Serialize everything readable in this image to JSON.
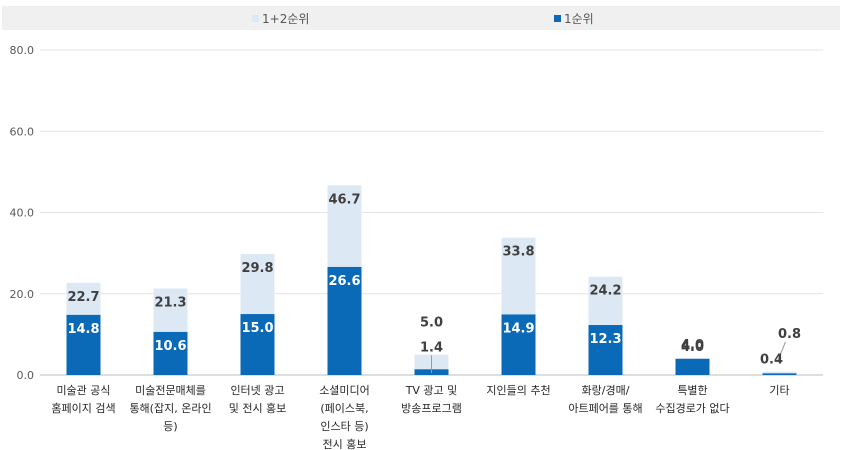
{
  "chart_data": {
    "type": "bar",
    "categories": [
      [
        "미술관 공식",
        "홈페이지 검색"
      ],
      [
        "미술전문매체를",
        "통해(잡지, 온라인",
        "등)"
      ],
      [
        "인터넷 광고",
        "및 전시 홍보"
      ],
      [
        "소셜미디어",
        "(페이스북,",
        "인스타 등)",
        "전시 홍보"
      ],
      [
        "TV 광고 및",
        "방송프로그램"
      ],
      [
        "지인들의 추천"
      ],
      [
        "화랑/경매/",
        "아트페어를 통해"
      ],
      [
        "특별한",
        "수집경로가 없다"
      ],
      [
        "기타"
      ]
    ],
    "series": [
      {
        "name": "1+2순위",
        "values": [
          22.7,
          21.3,
          29.8,
          46.7,
          5.0,
          33.8,
          24.2,
          4.0,
          0.8
        ],
        "color": "#dde8f5"
      },
      {
        "name": "1순위",
        "values": [
          14.8,
          10.6,
          15.0,
          26.6,
          1.4,
          14.9,
          12.3,
          4.0,
          0.4
        ],
        "color": "#0a6ab8"
      }
    ],
    "yticks": [
      "0.0",
      "20.0",
      "40.0",
      "60.0",
      "80.0"
    ],
    "ylim": [
      0,
      80
    ],
    "grid": true,
    "legend_position": "top"
  }
}
